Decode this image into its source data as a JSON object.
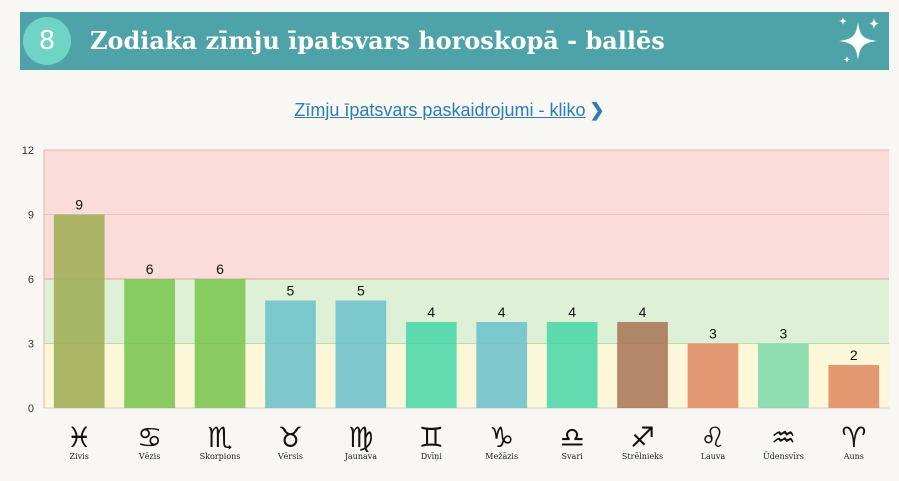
{
  "header": {
    "number": "8",
    "title": "Zodiaka zīmju īpatsvars horoskopā - ballēs",
    "decor_icon": "sparkle-icon"
  },
  "link": {
    "text": "Zīmju īpatsvars paskaidrojumi - kliko",
    "icon": "chevron-right-icon"
  },
  "chart_data": {
    "type": "bar",
    "ylim": [
      0,
      12
    ],
    "yticks": [
      0,
      3,
      6,
      9,
      12
    ],
    "bands": [
      {
        "from": 0,
        "to": 3,
        "color": "#fbf7d8"
      },
      {
        "from": 3,
        "to": 6,
        "color": "#def1d6"
      },
      {
        "from": 6,
        "to": 12,
        "color": "#fadcda"
      }
    ],
    "categories": [
      {
        "label": "Zivis",
        "symbol": "♓",
        "value": 9,
        "color": "#a1ae55"
      },
      {
        "label": "Vēzis",
        "symbol": "♋",
        "value": 6,
        "color": "#7ac651"
      },
      {
        "label": "Skorpions",
        "symbol": "♏",
        "value": 6,
        "color": "#7ac651"
      },
      {
        "label": "Vērsis",
        "symbol": "♉",
        "value": 5,
        "color": "#6cc2cb"
      },
      {
        "label": "Jaunava",
        "symbol": "♍",
        "value": 5,
        "color": "#6cc2cb"
      },
      {
        "label": "Dvīņi",
        "symbol": "♊",
        "value": 4,
        "color": "#4cd6aa"
      },
      {
        "label": "Mežāzis",
        "symbol": "♑",
        "value": 4,
        "color": "#6cc2cb"
      },
      {
        "label": "Svari",
        "symbol": "♎",
        "value": 4,
        "color": "#4cd6aa"
      },
      {
        "label": "Strēlnieks",
        "symbol": "♐",
        "value": 4,
        "color": "#a87858"
      },
      {
        "label": "Lauva",
        "symbol": "♌",
        "value": 3,
        "color": "#df8b62"
      },
      {
        "label": "Ūdensvīrs",
        "symbol": "♒",
        "value": 3,
        "color": "#7edaa8"
      },
      {
        "label": "Auns",
        "symbol": "♈",
        "value": 2,
        "color": "#df8b62"
      }
    ]
  }
}
